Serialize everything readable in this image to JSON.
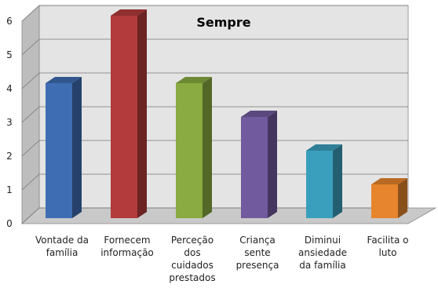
{
  "chart_data": {
    "type": "bar3d",
    "title": "Sempre",
    "categories": [
      "Vontade da família",
      "Fornecem informação",
      "Perceção dos cuidados prestados",
      "Criança sente presença",
      "Diminui ansiedade da família",
      "Facilita o luto"
    ],
    "values": [
      4,
      6,
      4,
      3,
      2,
      1
    ],
    "colors": [
      "#3f6db3",
      "#b33b3b",
      "#8aab41",
      "#725a9e",
      "#3a9fbd",
      "#e6852d"
    ],
    "ylim": [
      0,
      6
    ],
    "yticks": [
      0,
      1,
      2,
      3,
      4,
      5,
      6
    ],
    "grid": true
  }
}
